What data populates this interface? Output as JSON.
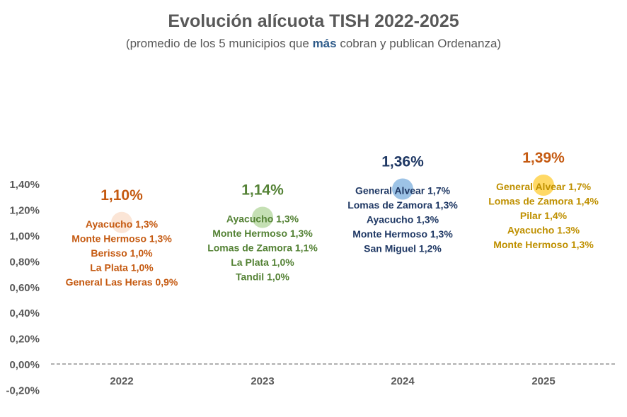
{
  "chart_data": {
    "type": "scatter",
    "title": "Evolución alícuota TISH 2022-2025",
    "subtitle": {
      "before": "(promedio de los 5 municipios que ",
      "emphasis": "más",
      "after": " cobran y publican Ordenanza)"
    },
    "xlabel": "",
    "ylabel": "",
    "categories": [
      "2022",
      "2023",
      "2024",
      "2025"
    ],
    "ylim": [
      -0.2,
      1.4
    ],
    "yticks": [
      "-0,20%",
      "0,00%",
      "0,20%",
      "0,40%",
      "0,60%",
      "0,80%",
      "1,00%",
      "1,20%",
      "1,40%"
    ],
    "ytick_values": [
      -0.2,
      0,
      0.2,
      0.4,
      0.6,
      0.8,
      1.0,
      1.2,
      1.4
    ],
    "baseline": "dashed",
    "points": [
      {
        "year": "2022",
        "value": 1.1,
        "label": "1,10%",
        "label_color": "#c55a11",
        "marker_color": "#fbe5d6",
        "text_color": "#c55a11",
        "annotations": [
          "Ayacucho 1,3%",
          "Monte Hermoso 1,3%",
          "Berisso 1,0%",
          "La Plata 1,0%",
          "General Las Heras 0,9%"
        ]
      },
      {
        "year": "2023",
        "value": 1.14,
        "label": "1,14%",
        "label_color": "#548235",
        "marker_color": "#c5e0b4",
        "text_color": "#548235",
        "annotations": [
          "Ayacucho 1,3%",
          "Monte Hermoso 1,3%",
          "Lomas de Zamora 1,1%",
          "La Plata 1,0%",
          "Tandil 1,0%"
        ]
      },
      {
        "year": "2024",
        "value": 1.36,
        "label": "1,36%",
        "label_color": "#1f3864",
        "marker_color": "#9dc3e6",
        "text_color": "#1f3864",
        "annotations": [
          "General Alvear 1,7%",
          "Lomas de Zamora 1,3%",
          "Ayacucho 1,3%",
          "Monte Hermoso 1,3%",
          "San Miguel 1,2%"
        ]
      },
      {
        "year": "2025",
        "value": 1.39,
        "label": "1,39%",
        "label_color": "#c55a11",
        "marker_color": "#ffd966",
        "text_color": "#bf9000",
        "annotations": [
          "General Alvear 1,7%",
          "Lomas de Zamora 1,4%",
          "Pilar 1,4%",
          "Ayacucho 1.3%",
          "Monte Hermoso 1,3%"
        ]
      }
    ],
    "colors": {
      "axis_text": "#595959",
      "baseline": "#7f7f7f"
    }
  }
}
